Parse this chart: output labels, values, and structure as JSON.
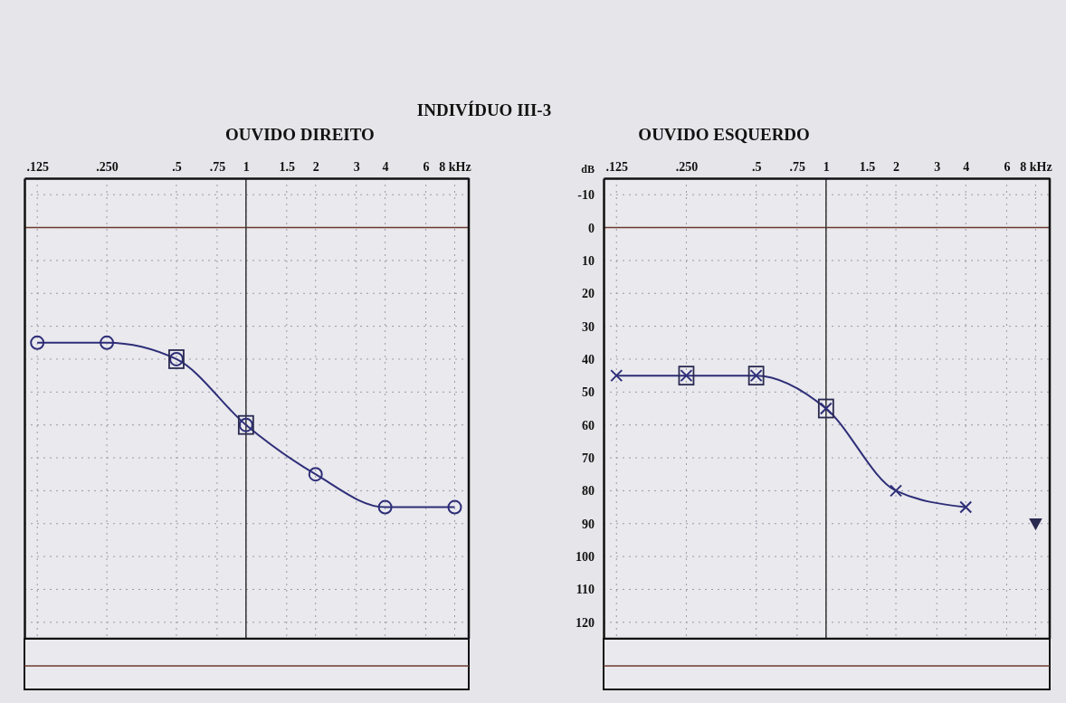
{
  "chart_data": [
    {
      "type": "line",
      "title": "OUVIDO DIREITO",
      "annotations": [
        "INDIVÍDUO III-3"
      ],
      "log": "x",
      "xlim": [
        0.11,
        9.2
      ],
      "xticks": [
        {
          "value": 0.125,
          "label": ".125"
        },
        {
          "value": 0.25,
          "label": ".250"
        },
        {
          "value": 0.5,
          "label": ".5"
        },
        {
          "value": 0.75,
          "label": ".75"
        },
        1,
        1.5,
        2,
        3,
        4,
        6,
        {
          "value": 8,
          "label": "8 kHz"
        }
      ],
      "ylim": [
        125,
        -15
      ],
      "yticks": [
        -10,
        0,
        10,
        20,
        30,
        40,
        50,
        60,
        70,
        80,
        90,
        100,
        110,
        120
      ],
      "tick_labels": "x",
      "grid": true,
      "ref_lines": [
        {
          "axis": "y",
          "value": 0,
          "color": "#6b3b2e"
        },
        {
          "axis": "x",
          "value": 1,
          "color": "#333333"
        }
      ],
      "series": [
        {
          "type": "line",
          "marker": "circle",
          "color": "#2e2e78",
          "x": [
            0.125,
            0.25,
            0.5,
            1,
            2,
            4,
            8
          ],
          "values": [
            35,
            35,
            40,
            60,
            75,
            85,
            85
          ]
        },
        {
          "type": "scatter",
          "marker": "square",
          "color": "#2a2a50",
          "x": [
            0.5,
            1
          ],
          "values": [
            40,
            60
          ]
        }
      ]
    },
    {
      "type": "line",
      "title": "OUVIDO ESQUERDO",
      "ylabel": "dB",
      "log": "x",
      "xlim": [
        0.11,
        9.2
      ],
      "xticks": [
        {
          "value": 0.125,
          "label": ".125"
        },
        {
          "value": 0.25,
          "label": ".250"
        },
        {
          "value": 0.5,
          "label": ".5"
        },
        {
          "value": 0.75,
          "label": ".75"
        },
        1,
        1.5,
        2,
        3,
        4,
        6,
        {
          "value": 8,
          "label": "8 kHz"
        }
      ],
      "ylim": [
        125,
        -15
      ],
      "yticks": [
        -10,
        0,
        10,
        20,
        30,
        40,
        50,
        60,
        70,
        80,
        90,
        100,
        110,
        120
      ],
      "grid": true,
      "ref_lines": [
        {
          "axis": "y",
          "value": 0,
          "color": "#6b3b2e"
        },
        {
          "axis": "x",
          "value": 1,
          "color": "#333333"
        }
      ],
      "series": [
        {
          "type": "line",
          "marker": "cross",
          "color": "#2e2e78",
          "x": [
            0.125,
            0.25,
            0.5,
            1,
            2,
            4
          ],
          "values": [
            45,
            45,
            45,
            55,
            80,
            85
          ]
        },
        {
          "type": "scatter",
          "marker": "square",
          "color": "#2a2a50",
          "x": [
            0.25,
            0.5,
            1
          ],
          "values": [
            45,
            45,
            55
          ]
        },
        {
          "type": "scatter",
          "marker": "triangle",
          "color": "#2a2a50",
          "x": [
            8
          ],
          "values": [
            90
          ]
        }
      ]
    }
  ]
}
